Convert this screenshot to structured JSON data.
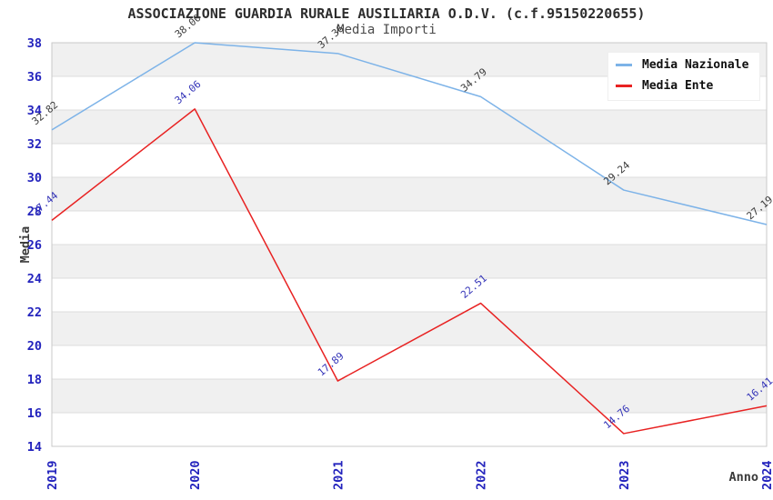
{
  "title": "ASSOCIAZIONE GUARDIA RURALE AUSILIARIA O.D.V. (c.f.95150220655)",
  "subtitle": "Media Importi",
  "axes": {
    "x_label": "Anno",
    "y_label": "Media",
    "tick_color": "#2323bd",
    "axis_label_color": "#3a3a3a"
  },
  "chart_data": {
    "type": "line",
    "x": [
      "2019",
      "2020",
      "2021",
      "2022",
      "2023",
      "2024"
    ],
    "series": [
      {
        "name": "Media Nazionale",
        "color": "#7db3e8",
        "label_color": "#3c3c3c",
        "values": [
          32.82,
          38.0,
          37.36,
          34.79,
          29.24,
          27.19
        ],
        "labels": [
          "32.82",
          "38.00",
          "37.36",
          "34.79",
          "29.24",
          "27.19"
        ]
      },
      {
        "name": "Media Ente",
        "color": "#e82222",
        "label_color": "#3434b8",
        "values": [
          27.44,
          34.06,
          17.89,
          22.51,
          14.76,
          16.41
        ],
        "labels": [
          "27.44",
          "34.06",
          "17.89",
          "22.51",
          "14.76",
          "16.41"
        ]
      }
    ],
    "ylim": [
      14,
      38
    ],
    "ytick_step": 2,
    "grid": true,
    "legend_position": "top-right",
    "band_color": "#f0f0f0",
    "grid_color": "#dcdcdc",
    "border_color": "#c9c9c9"
  }
}
